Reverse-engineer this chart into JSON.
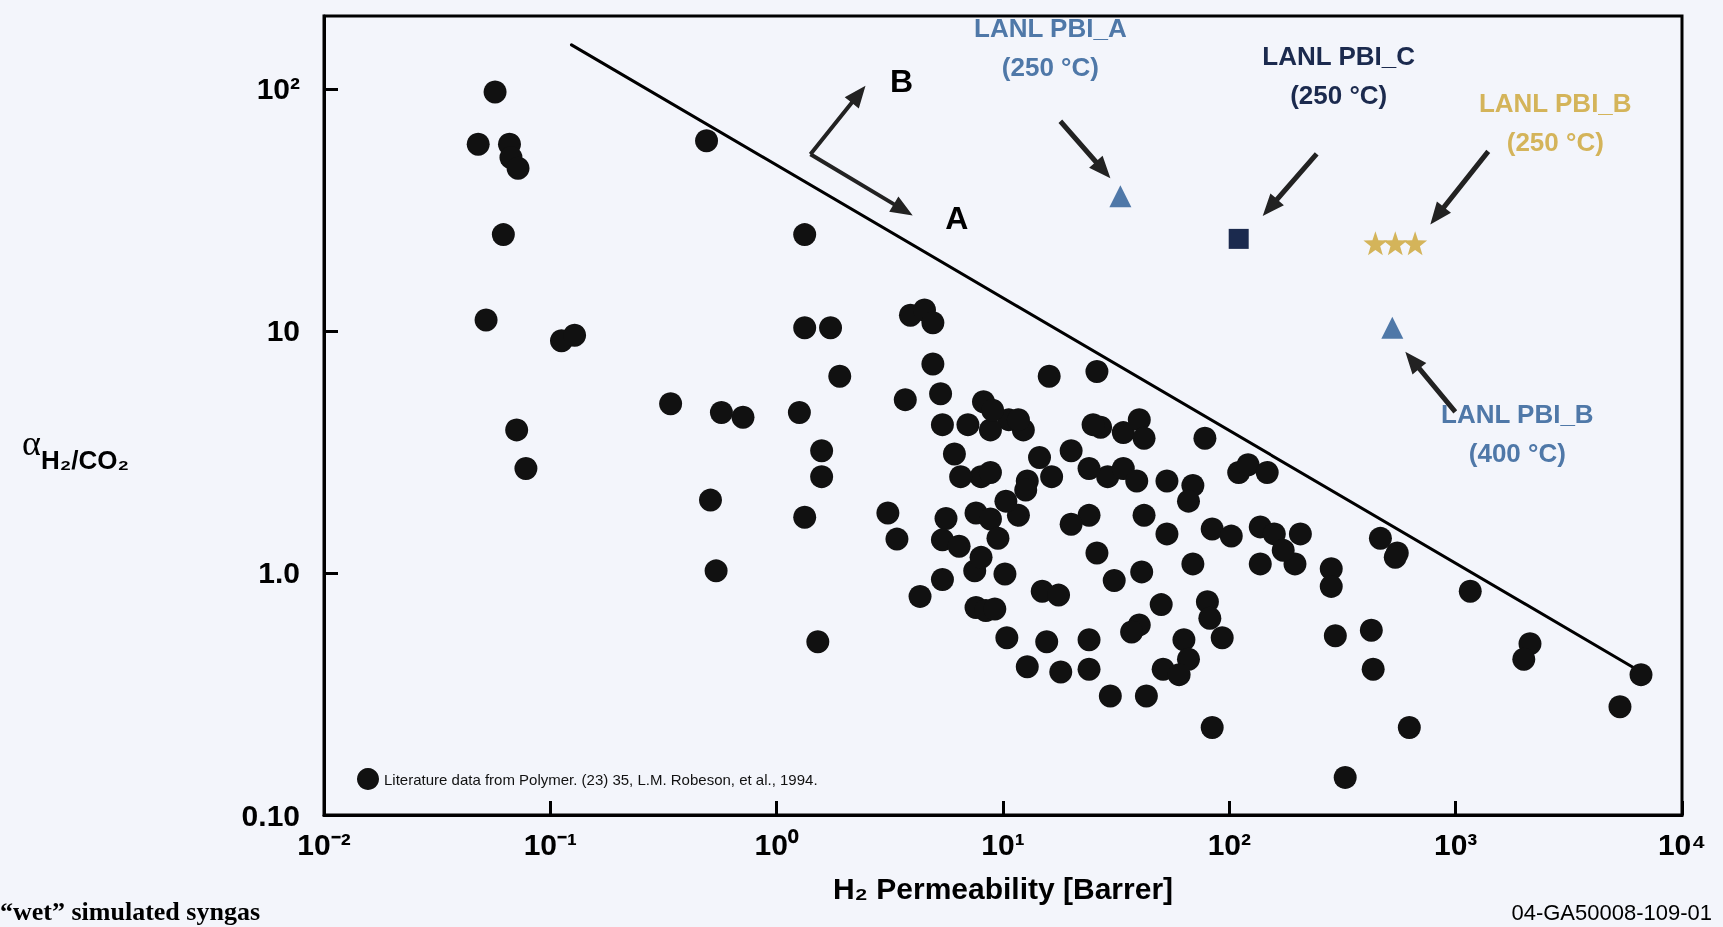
{
  "chart_data": {
    "type": "scatter",
    "xlabel": "H₂ Permeability [Barrer]",
    "ylabel": "α$_{H₂/CO₂}$",
    "log": "xy",
    "grid": false,
    "legend": "bottom left",
    "xlim": [
      0.01,
      10000
    ],
    "xticks": [
      {
        "value": 0.01,
        "label": "10⁻²"
      },
      {
        "value": 0.1,
        "label": "10⁻¹"
      },
      {
        "value": 1,
        "label": "10⁰"
      },
      {
        "value": 10,
        "label": "10¹"
      },
      {
        "value": 100,
        "label": "10²"
      },
      {
        "value": 1000,
        "label": "10³"
      },
      {
        "value": 10000,
        "label": "10⁴"
      }
    ],
    "ylim": [
      0.1,
      200
    ],
    "yticks": [
      {
        "value": 0.1,
        "label": "0.10"
      },
      {
        "value": 1,
        "label": "1.0"
      },
      10,
      {
        "value": 100,
        "label": "10²"
      }
    ],
    "annotations": [
      "B",
      "A",
      "“wet” simulated syngas",
      "04-GA50008-109-01"
    ],
    "series": [
      {
        "name": "Literature data from Polymer. (23) 35, L.M. Robeson, et al., 1994.",
        "marker": "circle",
        "color": "#111111",
        "x": [
          0.057,
          0.048,
          0.066,
          0.067,
          0.072,
          0.062,
          0.052,
          0.112,
          0.128,
          0.49,
          1.33,
          1.33,
          1.73,
          3.9,
          4.5,
          4.9,
          1.9,
          4.9,
          0.34,
          0.57,
          0.71,
          1.26,
          3.7,
          5.3,
          0.071,
          1.58,
          5.4,
          8.2,
          6.1,
          0.078,
          0.51,
          0.54,
          1.58,
          1.33,
          1.52,
          3.1,
          3.4,
          4.3,
          5.4,
          5.6,
          5.4,
          6.4,
          7.6,
          7.5,
          7.6,
          8.4,
          8.0,
          78,
          110,
          121,
          147,
          84,
          102,
          137,
          158,
          206,
          137,
          195,
          173,
          69,
          282,
          282,
          465,
          552,
          541,
          1160,
          2130,
          2000,
          6590,
          5320,
          294,
          424,
          432,
          624,
          325,
          84,
          29.8,
          43,
          80,
          82,
          93,
          63,
          66,
          51,
          60,
          50,
          40,
          37,
          41,
          31,
          26,
          24,
          24,
          18,
          12.8,
          15.6,
          10.4,
          14.9,
          17.6,
          10.2,
          9.2,
          53,
          42,
          24,
          20,
          29,
          34,
          39,
          53,
          69,
          66,
          24,
          20,
          14.5,
          12.8,
          16.4,
          11.7,
          8.8,
          9.5,
          27,
          34,
          40,
          42,
          12.3,
          10.6,
          8.8,
          12.6,
          8.0,
          26,
          16,
          9.0,
          11.7,
          25,
          7.0,
          10.3,
          6.5,
          8.8
        ],
        "values": [
          97,
          59,
          59,
          52,
          47,
          25,
          11.1,
          9.1,
          9.6,
          61,
          25,
          10.3,
          10.3,
          11.6,
          12.2,
          10.8,
          6.5,
          7.3,
          5.0,
          4.6,
          4.4,
          4.6,
          5.2,
          5.5,
          3.9,
          3.2,
          4.1,
          5.1,
          3.1,
          2.7,
          2.0,
          1.02,
          2.5,
          1.7,
          0.52,
          1.77,
          1.38,
          0.8,
          0.94,
          1.68,
          1.37,
          1.29,
          1.77,
          1.02,
          0.72,
          0.7,
          2.5,
          3.6,
          2.6,
          2.8,
          2.6,
          1.52,
          1.42,
          1.55,
          1.45,
          1.45,
          1.09,
          1.09,
          1.24,
          1.09,
          1.04,
          0.88,
          1.39,
          1.21,
          1.16,
          0.84,
          0.51,
          0.44,
          0.38,
          0.28,
          0.55,
          0.58,
          0.4,
          0.23,
          0.143,
          0.23,
          0.31,
          0.31,
          0.76,
          0.65,
          0.54,
          0.53,
          0.44,
          0.4,
          0.38,
          0.74,
          0.61,
          0.57,
          1.01,
          0.93,
          1.21,
          0.53,
          0.4,
          0.39,
          0.41,
          0.52,
          0.54,
          0.84,
          0.81,
          0.99,
          0.71,
          1.45,
          1.73,
          1.73,
          1.59,
          2.5,
          2.7,
          2.4,
          2.4,
          2.3,
          1.98,
          2.7,
          3.2,
          3.0,
          2.4,
          2.5,
          1.73,
          1.67,
          1.39,
          4.0,
          3.8,
          4.3,
          3.6,
          3.9,
          4.3,
          3.9,
          2.2,
          1.16,
          6.8,
          6.5,
          4.7,
          4.3,
          4.1,
          4.1,
          1.98,
          2.5,
          2.6
        ]
      },
      {
        "type": "line",
        "marker": "none",
        "color": "#000000",
        "x": [
          0.124,
          6590
        ],
        "values": [
          152,
          0.39
        ]
      },
      {
        "name": "LANL PBI_A\n(250 °C)",
        "type": "scatter",
        "marker": "triangle",
        "color": "#4f78a8",
        "x": [
          33
        ],
        "values": [
          36
        ]
      },
      {
        "name": "LANL PBI_C\n(250 °C)",
        "type": "scatter",
        "marker": "square",
        "color": "#1b2a4e",
        "x": [
          110
        ],
        "values": [
          24
        ]
      },
      {
        "name": "LANL PBI_B\n(250 °C)",
        "type": "scatter",
        "marker": "star",
        "color": "#d4b45a",
        "x": [
          442,
          541,
          662
        ],
        "values": [
          23,
          23,
          23
        ]
      },
      {
        "name": "LANL PBI_B\n(400 °C)",
        "type": "scatter",
        "marker": "triangle",
        "color": "#4f78a8",
        "x": [
          525
        ],
        "values": [
          10.3
        ]
      }
    ]
  }
}
